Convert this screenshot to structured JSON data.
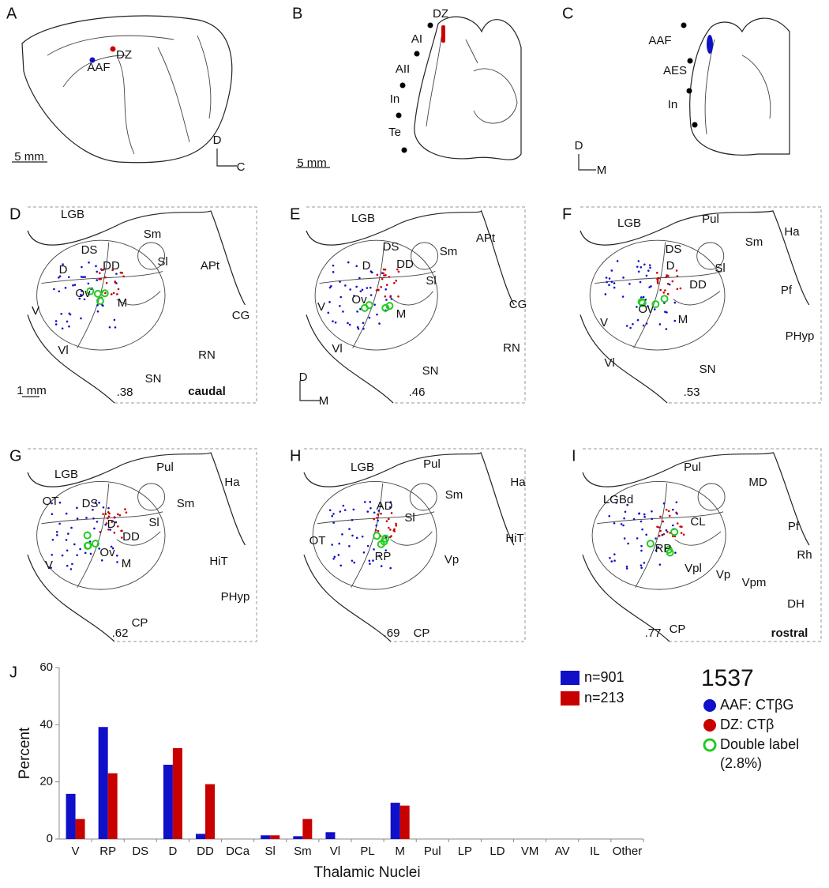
{
  "panels": [
    {
      "letter": "A",
      "labels": [
        "DZ",
        "AAF",
        "5 mm",
        "D",
        "C"
      ]
    },
    {
      "letter": "B",
      "labels": [
        "DZ",
        "AI",
        "AII",
        "In",
        "Te",
        "5 mm"
      ]
    },
    {
      "letter": "C",
      "labels": [
        "AAF",
        "AES",
        "In",
        "D",
        "M"
      ]
    },
    {
      "letter": "D",
      "labels": [
        "LGB",
        "Sm",
        "DS",
        "Sl",
        "DD",
        "APt",
        "D",
        "Ov",
        "M",
        "V",
        "CG",
        "Vl",
        "RN",
        "SN",
        "1 mm",
        ".38",
        "caudal"
      ]
    },
    {
      "letter": "E",
      "labels": [
        "LGB",
        "APt",
        "DS",
        "Sm",
        "DD",
        "D",
        "Sl",
        "V",
        "Ov",
        "CG",
        "M",
        "Vl",
        "RN",
        "SN",
        "D",
        "M",
        ".46"
      ]
    },
    {
      "letter": "F",
      "labels": [
        "LGB",
        "Pul",
        "Sm",
        "Ha",
        "DS",
        "D",
        "Sl",
        "DD",
        "Pf",
        "Ov",
        "V",
        "M",
        "PHyp",
        "Vl",
        "SN",
        ".53"
      ]
    },
    {
      "letter": "G",
      "labels": [
        "LGB",
        "Pul",
        "Ha",
        "OT",
        "DS",
        "Sm",
        "Sl",
        "D",
        "DD",
        "Ov",
        "V",
        "M",
        "HiT",
        "PHyp",
        "CP",
        ".62"
      ]
    },
    {
      "letter": "H",
      "labels": [
        "LGB",
        "Pul",
        "Sm",
        "Ha",
        "AD",
        "Sl",
        "OT",
        "HiT",
        "RP",
        "Vp",
        ".69",
        "CP"
      ]
    },
    {
      "letter": "I",
      "labels": [
        "Pul",
        "MD",
        "LGBd",
        "CL",
        "Pf",
        "RP",
        "Rh",
        "Vpl",
        "Vp",
        "Vpm",
        "DH",
        "CP",
        ".77",
        "rostral"
      ]
    }
  ],
  "chart_data": {
    "type": "bar",
    "panel_letter": "J",
    "x_label": "Thalamic Nuclei",
    "y_label": "Percent",
    "categories": [
      "V",
      "RP",
      "DS",
      "D",
      "DD",
      "DCa",
      "Sl",
      "Sm",
      "Vl",
      "PL",
      "M",
      "Pul",
      "LP",
      "LD",
      "VM",
      "AV",
      "IL",
      "Other"
    ],
    "series": [
      {
        "name": "n=901",
        "color": "#1010c8",
        "values": [
          15.8,
          39.2,
          0,
          26,
          1.8,
          0,
          1.3,
          1,
          2.4,
          0,
          12.7,
          0,
          0,
          0,
          0,
          0,
          0,
          0
        ]
      },
      {
        "name": "n=213",
        "color": "#c80000",
        "values": [
          7,
          23,
          0,
          31.8,
          19.2,
          0,
          1.3,
          7,
          0,
          0,
          11.7,
          0,
          0,
          0,
          0,
          0,
          0,
          0
        ]
      }
    ],
    "ylim": [
      0,
      60
    ],
    "yticks": [
      0,
      20,
      40,
      60
    ],
    "grid": false
  },
  "key": {
    "case": "1537",
    "entries": [
      {
        "label": "AAF: CTβG",
        "color": "#1010c8"
      },
      {
        "label": "DZ: CTβ",
        "color": "#c80000"
      },
      {
        "label": "Double label",
        "color": "#22cc22"
      }
    ],
    "note": "(2.8%)"
  }
}
